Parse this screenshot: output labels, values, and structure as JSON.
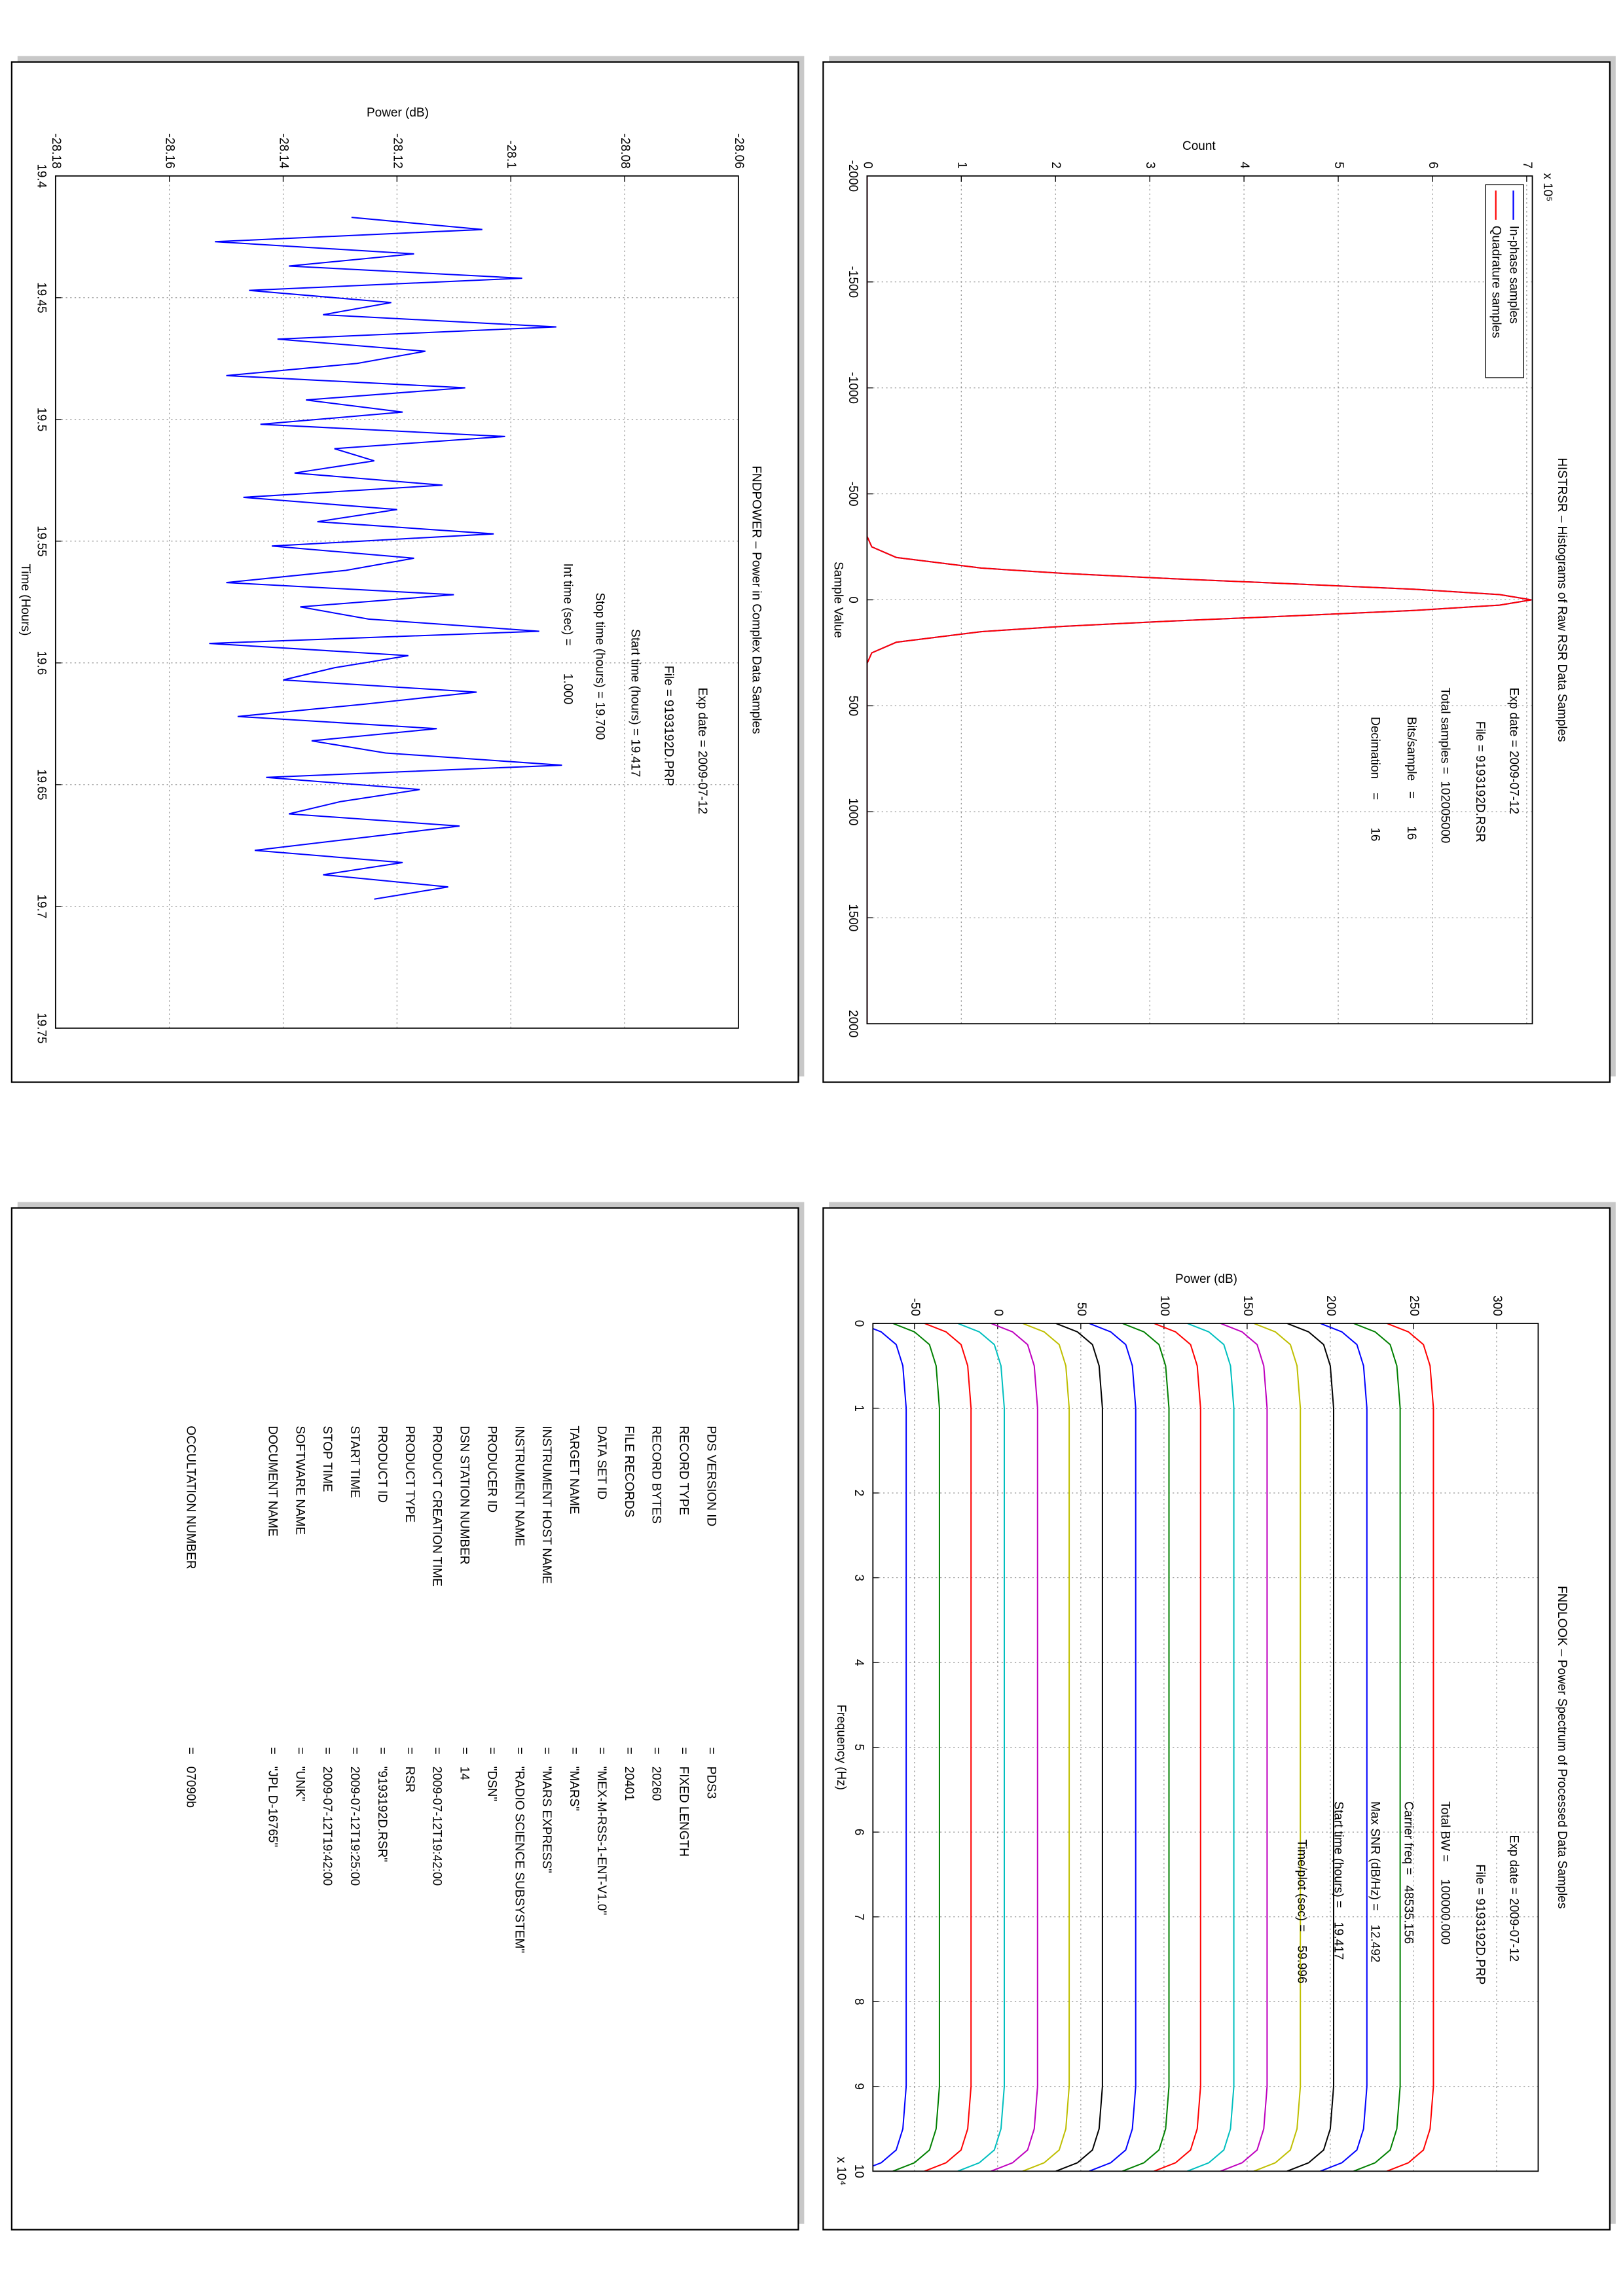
{
  "chart_data": [
    {
      "type": "line",
      "title": "HISTRSR – Histograms of Raw RSR Data Samples",
      "xlabel": "Sample Value",
      "ylabel": "Count",
      "exponent_label": "x 10⁵",
      "x": [
        -2000,
        -300,
        -250,
        -200,
        -150,
        -125,
        -100,
        -75,
        -50,
        -25,
        0,
        25,
        50,
        75,
        100,
        125,
        150,
        200,
        250,
        300,
        2000
      ],
      "series": [
        {
          "name": "In-phase samples",
          "color": "#0000ff",
          "values": [
            0,
            0,
            0.05,
            0.31,
            1.21,
            2.08,
            3.23,
            4.55,
            5.8,
            6.71,
            7.05,
            6.71,
            5.8,
            4.55,
            3.23,
            2.08,
            1.21,
            0.31,
            0.05,
            0,
            0
          ]
        },
        {
          "name": "Quadrature samples",
          "color": "#ff0000",
          "values": [
            0,
            0,
            0.05,
            0.31,
            1.21,
            2.08,
            3.23,
            4.55,
            5.8,
            6.71,
            7.05,
            6.71,
            5.8,
            4.55,
            3.23,
            2.08,
            1.21,
            0.31,
            0.05,
            0,
            0
          ]
        }
      ],
      "xlim": [
        -2000,
        2000
      ],
      "ylim": [
        0,
        7.06
      ],
      "xticks": [
        -2000,
        -1500,
        -1000,
        -500,
        0,
        500,
        1000,
        1500,
        2000
      ],
      "yticks": [
        0,
        1,
        2,
        3,
        4,
        5,
        6,
        7
      ],
      "grid": true,
      "legend": "upper left",
      "annotations": [
        "Exp date = 2009-07-12",
        "File = 9193192D.RSR",
        "Total samples =  102005000",
        "Bits/sample   =        16",
        "Decimation    =        16"
      ]
    },
    {
      "type": "line",
      "title": "FNDLOOK – Power Spectrum of Processed Data Samples",
      "xlabel": "Frequency (Hz)",
      "ylabel": "Power (dB)",
      "exponent_label": "x 10⁴",
      "x": [
        0,
        0.1,
        0.25,
        0.5,
        1,
        5,
        9,
        9.5,
        9.75,
        9.9,
        10
      ],
      "series": [
        {
          "color": "#0000ff",
          "values": [
            -83,
            -70,
            -61,
            -57,
            -55,
            -55,
            -55,
            -57,
            -61,
            -70,
            -83
          ]
        },
        {
          "color": "#008000",
          "values": [
            -63,
            -50,
            -41,
            -37,
            -35,
            -35,
            -35,
            -37,
            -41,
            -50,
            -63
          ]
        },
        {
          "color": "#ff0000",
          "values": [
            -44,
            -31,
            -22,
            -18,
            -16,
            -16,
            -16,
            -18,
            -22,
            -31,
            -44
          ]
        },
        {
          "color": "#00bfbf",
          "values": [
            -24,
            -11,
            -2,
            2,
            4,
            4,
            4,
            2,
            -2,
            -11,
            -24
          ]
        },
        {
          "color": "#bf00bf",
          "values": [
            -4,
            9,
            18,
            22,
            24,
            24,
            24,
            22,
            18,
            9,
            -4
          ]
        },
        {
          "color": "#bfbf00",
          "values": [
            15,
            28,
            37,
            41,
            43,
            43,
            43,
            41,
            37,
            28,
            15
          ]
        },
        {
          "color": "#000000",
          "values": [
            35,
            48,
            57,
            61,
            63,
            63,
            63,
            61,
            57,
            48,
            35
          ]
        },
        {
          "color": "#0000ff",
          "values": [
            55,
            68,
            77,
            81,
            83,
            83,
            83,
            81,
            77,
            68,
            55
          ]
        },
        {
          "color": "#008000",
          "values": [
            75,
            88,
            97,
            101,
            103,
            103,
            103,
            101,
            97,
            88,
            75
          ]
        },
        {
          "color": "#ff0000",
          "values": [
            94,
            107,
            116,
            120,
            122,
            122,
            122,
            120,
            116,
            107,
            94
          ]
        },
        {
          "color": "#00bfbf",
          "values": [
            114,
            127,
            136,
            140,
            142,
            142,
            142,
            140,
            136,
            127,
            114
          ]
        },
        {
          "color": "#bf00bf",
          "values": [
            134,
            147,
            156,
            160,
            162,
            162,
            162,
            160,
            156,
            147,
            134
          ]
        },
        {
          "color": "#bfbf00",
          "values": [
            154,
            167,
            176,
            180,
            182,
            182,
            182,
            180,
            176,
            167,
            154
          ]
        },
        {
          "color": "#000000",
          "values": [
            174,
            187,
            196,
            200,
            202,
            202,
            202,
            200,
            196,
            187,
            174
          ]
        },
        {
          "color": "#0000ff",
          "values": [
            194,
            207,
            216,
            220,
            222,
            222,
            222,
            220,
            216,
            207,
            194
          ]
        },
        {
          "color": "#008000",
          "values": [
            214,
            227,
            236,
            240,
            242,
            242,
            242,
            240,
            236,
            227,
            214
          ]
        },
        {
          "color": "#ff0000",
          "values": [
            234,
            247,
            256,
            260,
            262,
            262,
            262,
            260,
            256,
            247,
            234
          ]
        }
      ],
      "xlim": [
        0,
        10
      ],
      "ylim": [
        -75,
        325
      ],
      "xticks": [
        0,
        1,
        2,
        3,
        4,
        5,
        6,
        7,
        8,
        9,
        10
      ],
      "yticks": [
        -50,
        0,
        50,
        100,
        150,
        200,
        250,
        300
      ],
      "grid": true,
      "annotations": [
        "Exp date = 2009-07-12",
        "File = 9193192D.PRP",
        "Total BW =     100000.000",
        "Carrier freq =   48535.156",
        "Max SNR (dB/Hz) =    12.492",
        "Start time (hours) =    19.417",
        "Time/plot (sec) =    59.996"
      ]
    },
    {
      "type": "line",
      "title": "FNDPOWER – Power in Complex Data Samples",
      "xlabel": "Time (Hours)",
      "ylabel": "Power (dB)",
      "x": [
        19.417,
        19.422,
        19.427,
        19.432,
        19.437,
        19.442,
        19.447,
        19.452,
        19.457,
        19.462,
        19.467,
        19.472,
        19.477,
        19.482,
        19.487,
        19.492,
        19.497,
        19.502,
        19.507,
        19.512,
        19.517,
        19.522,
        19.527,
        19.532,
        19.537,
        19.542,
        19.547,
        19.552,
        19.557,
        19.562,
        19.567,
        19.572,
        19.577,
        19.582,
        19.587,
        19.592,
        19.597,
        19.602,
        19.607,
        19.612,
        19.617,
        19.622,
        19.627,
        19.632,
        19.637,
        19.642,
        19.647,
        19.652,
        19.657,
        19.662,
        19.667,
        19.672,
        19.677,
        19.682,
        19.687,
        19.692,
        19.697
      ],
      "series": [
        {
          "color": "#0000ff",
          "values": [
            -28.128,
            -28.105,
            -28.152,
            -28.117,
            -28.139,
            -28.098,
            -28.146,
            -28.121,
            -28.133,
            -28.092,
            -28.141,
            -28.115,
            -28.127,
            -28.15,
            -28.108,
            -28.136,
            -28.119,
            -28.144,
            -28.101,
            -28.131,
            -28.124,
            -28.138,
            -28.112,
            -28.147,
            -28.12,
            -28.134,
            -28.103,
            -28.142,
            -28.117,
            -28.129,
            -28.15,
            -28.11,
            -28.137,
            -28.125,
            -28.095,
            -28.153,
            -28.118,
            -28.131,
            -28.14,
            -28.106,
            -28.126,
            -28.148,
            -28.113,
            -28.135,
            -28.122,
            -28.091,
            -28.143,
            -28.116,
            -28.13,
            -28.139,
            -28.109,
            -28.127,
            -28.145,
            -28.119,
            -28.133,
            -28.111,
            -28.124
          ]
        }
      ],
      "xlim": [
        19.4,
        19.75
      ],
      "ylim": [
        -28.18,
        -28.06
      ],
      "xticks": [
        19.4,
        19.45,
        19.5,
        19.55,
        19.6,
        19.65,
        19.7,
        19.75
      ],
      "yticks": [
        -28.18,
        -28.16,
        -28.14,
        -28.12,
        -28.1,
        -28.08,
        -28.06
      ],
      "grid": true,
      "annotations": [
        "Exp date = 2009-07-12",
        "File = 9193192D.PRP",
        "Start time (hours) = 19.417",
        "Stop time (hours) = 19.700",
        "Int time (sec) =        1.000"
      ]
    }
  ],
  "label_table": {
    "rows": [
      [
        "PDS VERSION ID",
        "=",
        "PDS3"
      ],
      [
        "RECORD TYPE",
        "=",
        "FIXED LENGTH"
      ],
      [
        "RECORD BYTES",
        "=",
        "20260"
      ],
      [
        "FILE RECORDS",
        "=",
        "20401"
      ],
      [
        "DATA SET ID",
        "=",
        "\"MEX-M-RSS-1-ENT-V1.0\""
      ],
      [
        "TARGET NAME",
        "=",
        "\"MARS\""
      ],
      [
        "INSTRUMENT HOST NAME",
        "=",
        "\"MARS EXPRESS\""
      ],
      [
        "INSTRUMENT NAME",
        "=",
        "\"RADIO SCIENCE SUBSYSTEM\""
      ],
      [
        "PRODUCER ID",
        "=",
        "\"DSN\""
      ],
      [
        "DSN STATION NUMBER",
        "=",
        "14"
      ],
      [
        "PRODUCT CREATION TIME",
        "=",
        "2009-07-12T19:42:00"
      ],
      [
        "PRODUCT TYPE",
        "=",
        "RSR"
      ],
      [
        "PRODUCT ID",
        "=",
        "\"9193192D.RSR\""
      ],
      [
        "START TIME",
        "=",
        "2009-07-12T19:25:00"
      ],
      [
        "STOP TIME",
        "=",
        "2009-07-12T19:42:00"
      ],
      [
        "SOFTWARE NAME",
        "=",
        "\"UNK\""
      ],
      [
        "DOCUMENT NAME",
        "=",
        "\"JPL D-16765\""
      ],
      [
        "OCCULTATION NUMBER",
        "=",
        "07090b"
      ]
    ]
  }
}
